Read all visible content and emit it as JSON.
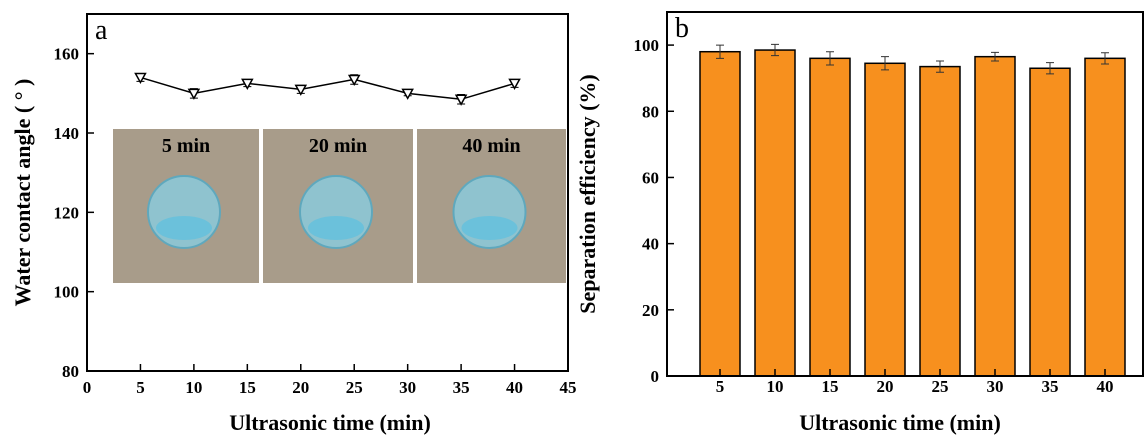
{
  "chart_data": [
    {
      "type": "line",
      "panel_label": "a",
      "x_label": "Ultrasonic time (min)",
      "y_label": "Water contact angle ( ° )",
      "x": [
        5,
        10,
        15,
        20,
        25,
        30,
        35,
        40
      ],
      "values": [
        154,
        150,
        152.5,
        151,
        153.5,
        150,
        148.5,
        152.5
      ],
      "errors": [
        1,
        1.2,
        0.8,
        1,
        1.2,
        0.6,
        1.2,
        1
      ],
      "color": "#000000",
      "xlim": [
        0,
        45
      ],
      "xticks": [
        0,
        5,
        10,
        15,
        20,
        25,
        30,
        35,
        40,
        45
      ],
      "ylim": [
        80,
        170
      ],
      "yticks": [
        80,
        100,
        120,
        140,
        160
      ],
      "insets": [
        "5 min",
        "20 min",
        "40 min"
      ]
    },
    {
      "type": "bar",
      "panel_label": "b",
      "x_label": "Ultrasonic time (min)",
      "y_label": "Separation efficiency (%)",
      "categories": [
        "5",
        "10",
        "15",
        "20",
        "25",
        "30",
        "35",
        "40"
      ],
      "values": [
        98,
        98.5,
        96,
        94.5,
        93.5,
        96.5,
        93,
        96
      ],
      "errors": [
        2,
        1.7,
        2,
        2,
        1.7,
        1.3,
        1.7,
        1.7
      ],
      "color": "#f7901e",
      "ylim": [
        0,
        110
      ],
      "yticks": [
        0,
        20,
        40,
        60,
        80,
        100
      ]
    }
  ]
}
